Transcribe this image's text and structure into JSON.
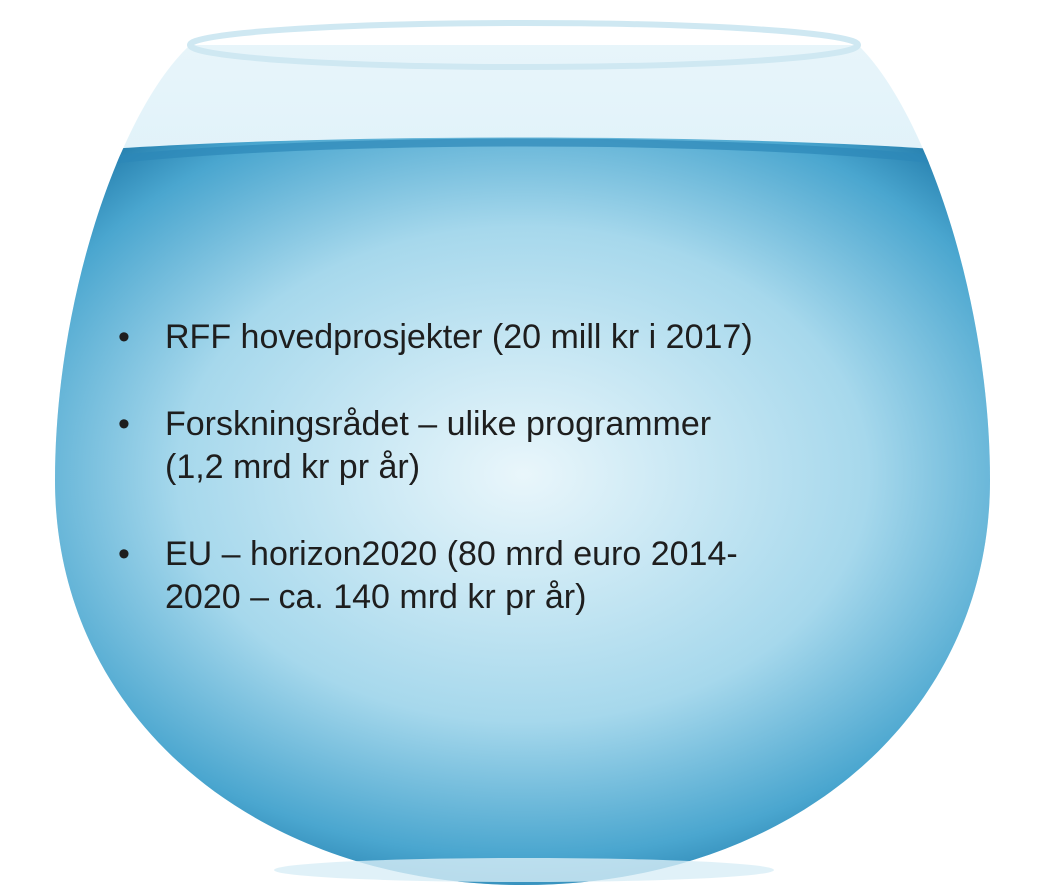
{
  "bullets": [
    {
      "lines": [
        "RFF hovedprosjekter (20 mill kr i 2017)"
      ]
    },
    {
      "lines": [
        "Forskningsrådet – ulike programmer",
        "(1,2 mrd kr pr år)"
      ]
    },
    {
      "lines": [
        "EU – horizon2020 (80 mrd euro 2014-",
        "2020 – ca. 140 mrd kr pr år)"
      ]
    }
  ]
}
